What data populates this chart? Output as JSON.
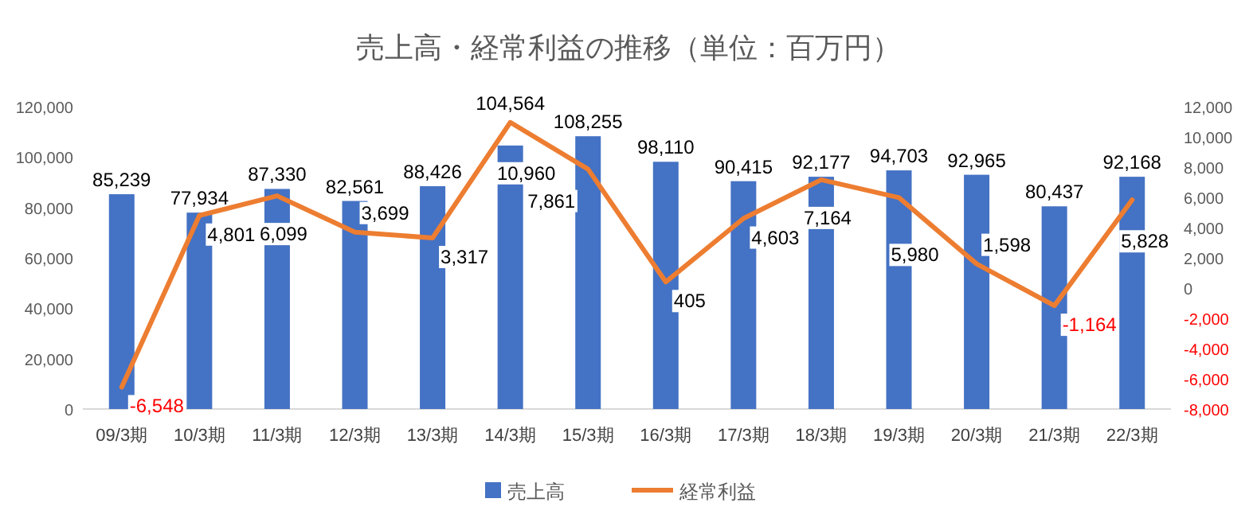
{
  "chart_data": {
    "type": "bar",
    "title": "売上高・経常利益の推移（単位：百万円）",
    "categories": [
      "09/3期",
      "10/3期",
      "11/3期",
      "12/3期",
      "13/3期",
      "14/3期",
      "15/3期",
      "16/3期",
      "17/3期",
      "18/3期",
      "19/3期",
      "20/3期",
      "21/3期",
      "22/3期"
    ],
    "series": [
      {
        "name": "売上高",
        "color": "#4472c4",
        "values": [
          85239,
          77934,
          87330,
          82561,
          88426,
          104564,
          108255,
          98110,
          90415,
          92177,
          94703,
          92965,
          80437,
          92168
        ],
        "value_labels": [
          "85,239",
          "77,934",
          "87,330",
          "82,561",
          "88,426",
          "104,564",
          "108,255",
          "98,110",
          "90,415",
          "92,177",
          "94,703",
          "92,965",
          "80,437",
          "92,168"
        ]
      },
      {
        "name": "経常利益",
        "type": "line",
        "axis": "y2",
        "color": "#ed7d31",
        "values": [
          -6548,
          4801,
          6099,
          3699,
          3317,
          10960,
          7861,
          405,
          4603,
          7164,
          5980,
          1598,
          -1164,
          5828
        ],
        "value_labels": [
          "-6,548",
          "4,801",
          "6,099",
          "3,699",
          "3,317",
          "10,960",
          "7,861",
          "405",
          "4,603",
          "7,164",
          "5,980",
          "1,598",
          "-1,164",
          "5,828"
        ]
      }
    ],
    "ylim": [
      0,
      120000
    ],
    "yticks": [
      0,
      {
        "value": 20000,
        "label": "20,000"
      },
      {
        "value": 40000,
        "label": "40,000"
      },
      {
        "value": 60000,
        "label": "60,000"
      },
      {
        "value": 80000,
        "label": "80,000"
      },
      {
        "value": 100000,
        "label": "100,000"
      },
      {
        "value": 120000,
        "label": "120,000"
      }
    ],
    "y2lim": [
      -8000,
      12000
    ],
    "y2ticks": [
      {
        "value": -8000,
        "label": "-8,000"
      },
      {
        "value": -6000,
        "label": "-6,000"
      },
      {
        "value": -4000,
        "label": "-4,000"
      },
      {
        "value": -2000,
        "label": "-2,000"
      },
      0,
      {
        "value": 2000,
        "label": "2,000"
      },
      {
        "value": 4000,
        "label": "4,000"
      },
      {
        "value": 6000,
        "label": "6,000"
      },
      {
        "value": 8000,
        "label": "8,000"
      },
      {
        "value": 10000,
        "label": "10,000"
      },
      {
        "value": 12000,
        "label": "12,000"
      }
    ],
    "legend": "bottom",
    "marker": "none",
    "line_style": "solid"
  }
}
